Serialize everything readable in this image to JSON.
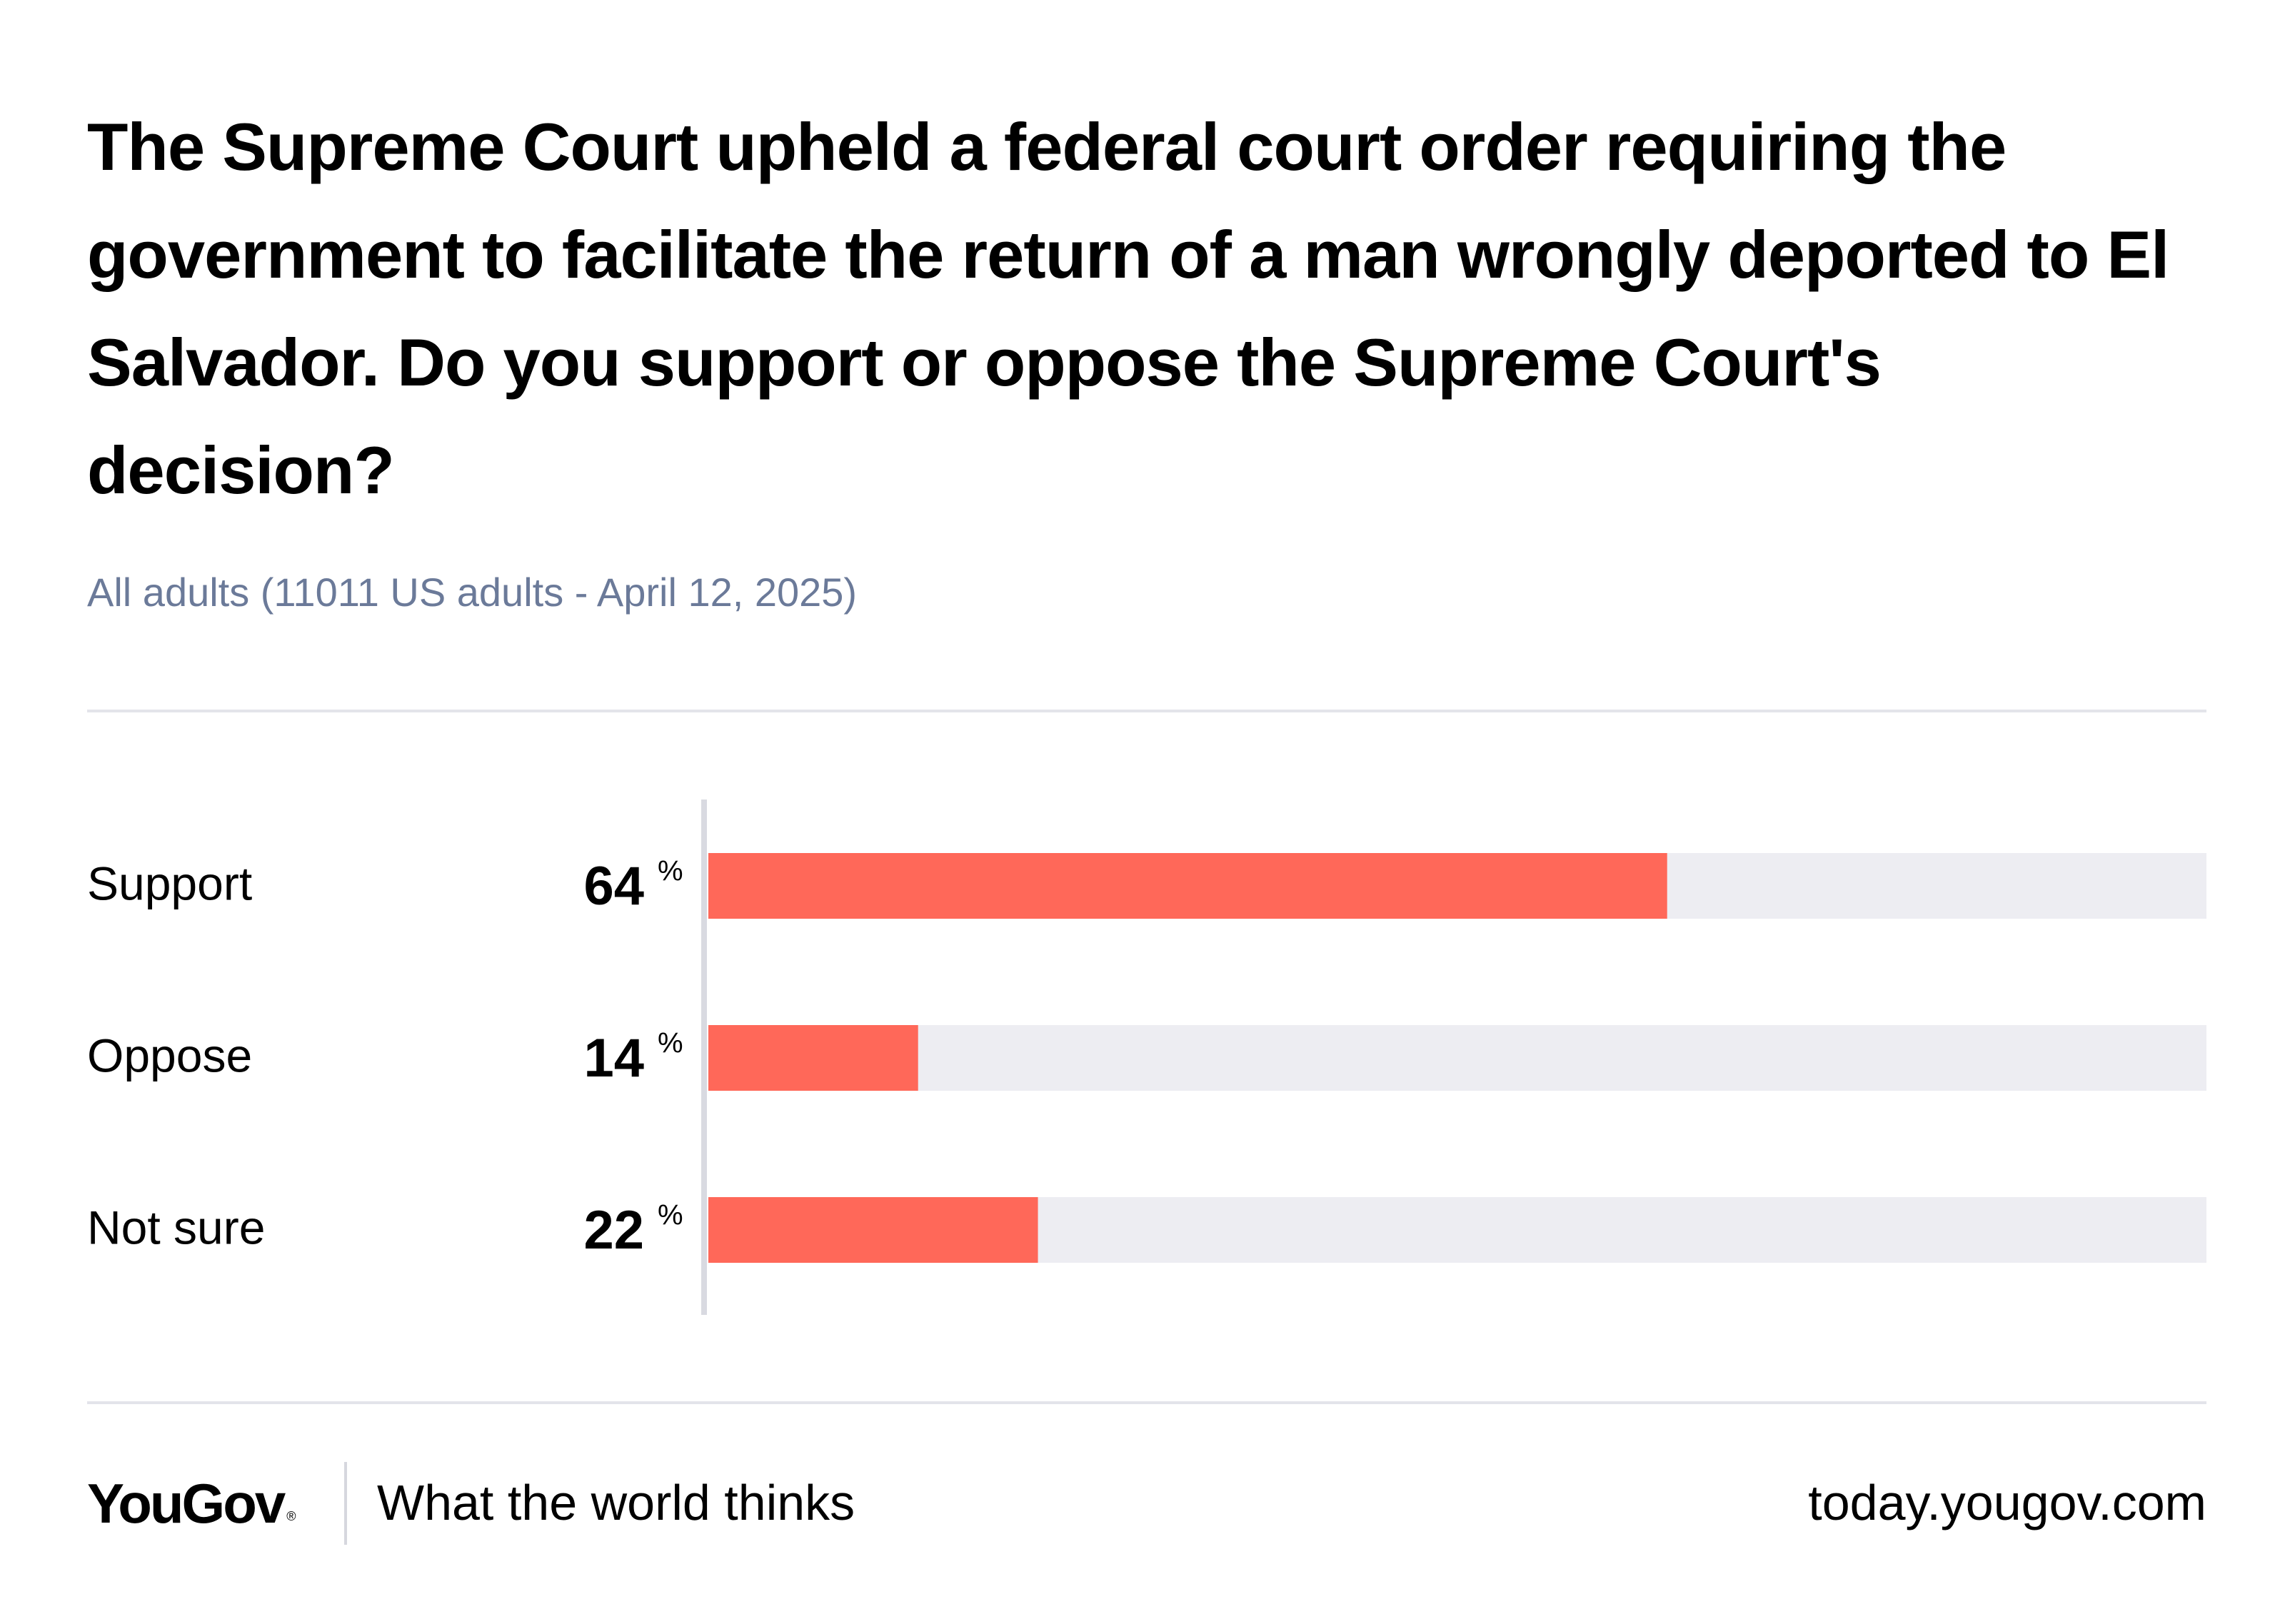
{
  "header": {
    "title": "The Supreme Court upheld a federal court order requiring the government to facilitate the return of a man wrongly deported to El Salvador. Do you support or oppose the Supreme Court's decision?",
    "subtitle": "All adults (11011 US adults - April 12, 2025)"
  },
  "chart_data": {
    "type": "bar",
    "orientation": "horizontal",
    "categories": [
      "Support",
      "Oppose",
      "Not sure"
    ],
    "values": [
      64,
      14,
      22
    ],
    "unit": "%",
    "xlim": [
      0,
      100
    ],
    "title": "The Supreme Court upheld a federal court order requiring the government to facilitate the return of a man wrongly deported to El Salvador. Do you support or oppose the Supreme Court's decision?",
    "subtitle": "All adults (11011 US adults - April 12, 2025)",
    "xlabel": "",
    "ylabel": "",
    "grid": false,
    "legend": "none",
    "colors": {
      "bar": "#ff6859",
      "track": "#ededf2",
      "axis": "#d9dae1",
      "label": "#000000"
    }
  },
  "footer": {
    "logo": "YouGov",
    "logo_mark": "®",
    "tagline": "What the world thinks",
    "url": "today.yougov.com"
  }
}
